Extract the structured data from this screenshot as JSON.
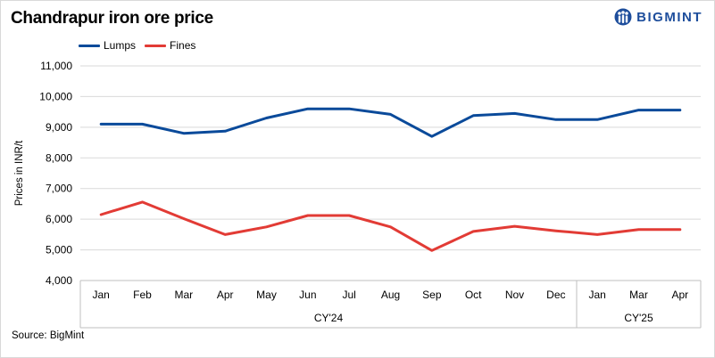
{
  "title": "Chandrapur iron ore price",
  "logo": {
    "text": "BIGMINT",
    "icon": "bigmint-logo-icon"
  },
  "source": "Source: BigMint",
  "colors": {
    "lumps": "#0a4a9a",
    "fines": "#e23b35",
    "grid": "#d9d9d9",
    "axis": "#bfbfbf"
  },
  "chart_data": {
    "type": "line",
    "title": "Chandrapur iron ore price",
    "xlabel": "",
    "ylabel": "Prices in INR/t",
    "ylim": [
      4000,
      11000
    ],
    "yticks": [
      4000,
      5000,
      6000,
      7000,
      8000,
      9000,
      10000,
      11000
    ],
    "ytick_labels": [
      "4,000",
      "5,000",
      "6,000",
      "7,000",
      "8,000",
      "9,000",
      "10,000",
      "11,000"
    ],
    "categories": [
      "Jan",
      "Feb",
      "Mar",
      "Apr",
      "May",
      "Jun",
      "Jul",
      "Aug",
      "Sep",
      "Oct",
      "Nov",
      "Dec",
      "Jan",
      "Mar",
      "Apr"
    ],
    "groups": [
      {
        "label": "CY'24",
        "start": 0,
        "end": 11
      },
      {
        "label": "CY'25",
        "start": 12,
        "end": 14
      }
    ],
    "legend": "top-left",
    "grid": true,
    "series": [
      {
        "name": "Lumps",
        "values": [
          9100,
          9100,
          8800,
          8870,
          9300,
          9600,
          9600,
          9420,
          8700,
          9380,
          9450,
          9250,
          9250,
          9560,
          9560
        ]
      },
      {
        "name": "Fines",
        "values": [
          6150,
          6560,
          6020,
          5500,
          5750,
          6120,
          6120,
          5750,
          4980,
          5600,
          5770,
          5620,
          5500,
          5660,
          5660
        ]
      }
    ]
  }
}
